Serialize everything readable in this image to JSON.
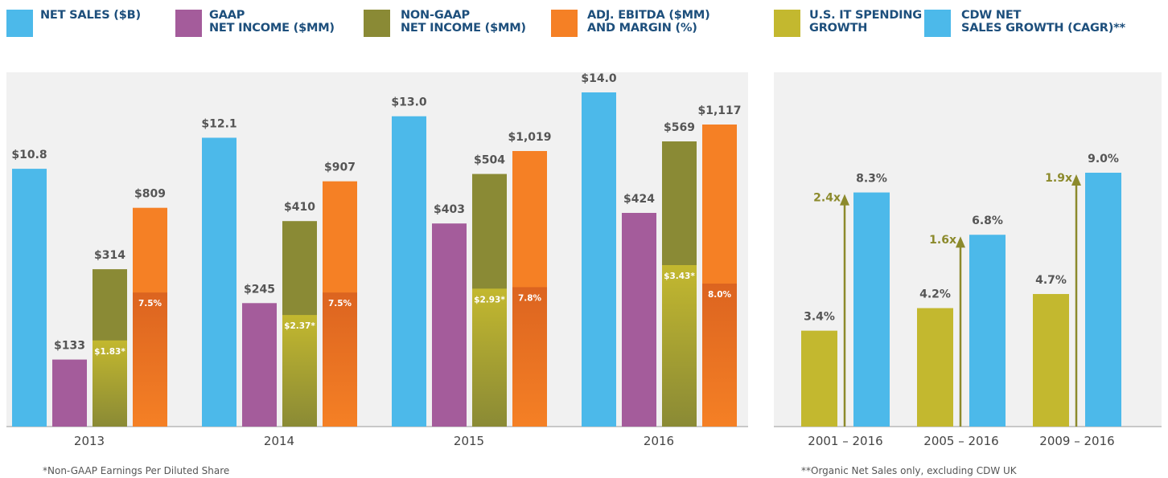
{
  "chart_data": [
    {
      "type": "bar",
      "categories": [
        "2013",
        "2014",
        "2015",
        "2016"
      ],
      "series": [
        {
          "name": "NET SALES ($B)",
          "color": "#4cb9ea",
          "values": [
            10.8,
            12.1,
            13.0,
            14.0
          ],
          "value_labels": [
            "$10.8",
            "$12.1",
            "$13.0",
            "$14.0"
          ]
        },
        {
          "name": "GAAP\nNET INCOME ($MM)",
          "color": "#a45c9b",
          "values": [
            133,
            245,
            403,
            424
          ],
          "value_labels": [
            "$133",
            "$245",
            "$403",
            "$424"
          ]
        },
        {
          "name": "NON-GAAP\nNET INCOME ($MM)",
          "color": "#8a8a35",
          "values": [
            314,
            410,
            504,
            569
          ],
          "value_labels": [
            "$314",
            "$410",
            "$504",
            "$569"
          ]
        },
        {
          "name": "ADJ. EBITDA ($MM)\nAND MARGIN (%)",
          "color": "#f58025",
          "values": [
            809,
            907,
            1019,
            1117
          ],
          "value_labels": [
            "$809",
            "$907",
            "$1,019",
            "$1,117"
          ]
        }
      ],
      "eps": {
        "color": "#c3b82f",
        "values": [
          1.83,
          2.37,
          2.93,
          3.43
        ],
        "value_labels": [
          "$1.83*",
          "$2.37*",
          "$2.93*",
          "$3.43*"
        ]
      },
      "margin": {
        "color": "#dc6420",
        "values": [
          7.5,
          7.5,
          7.8,
          8.0
        ],
        "value_labels": [
          "7.5%",
          "7.5%",
          "7.8%",
          "8.0%"
        ]
      },
      "footnote": "*Non-GAAP Earnings Per Diluted Share"
    },
    {
      "type": "bar",
      "categories": [
        "2001 – 2016",
        "2005 – 2016",
        "2009 – 2016"
      ],
      "series": [
        {
          "name": "U.S. IT SPENDING\nGROWTH",
          "color": "#c3b82f",
          "values": [
            3.4,
            4.2,
            4.7
          ],
          "value_labels": [
            "3.4%",
            "4.2%",
            "4.7%"
          ]
        },
        {
          "name": "CDW NET\nSALES GROWTH (CAGR)**",
          "color": "#4cb9ea",
          "values": [
            8.3,
            6.8,
            9.0
          ],
          "value_labels": [
            "8.3%",
            "6.8%",
            "9.0%"
          ]
        }
      ],
      "multipliers": [
        "2.4x",
        "1.6x",
        "1.9x"
      ],
      "multiplier_color": "#8c8a2c",
      "footnote": "**Organic Net Sales only, excluding CDW UK"
    }
  ]
}
